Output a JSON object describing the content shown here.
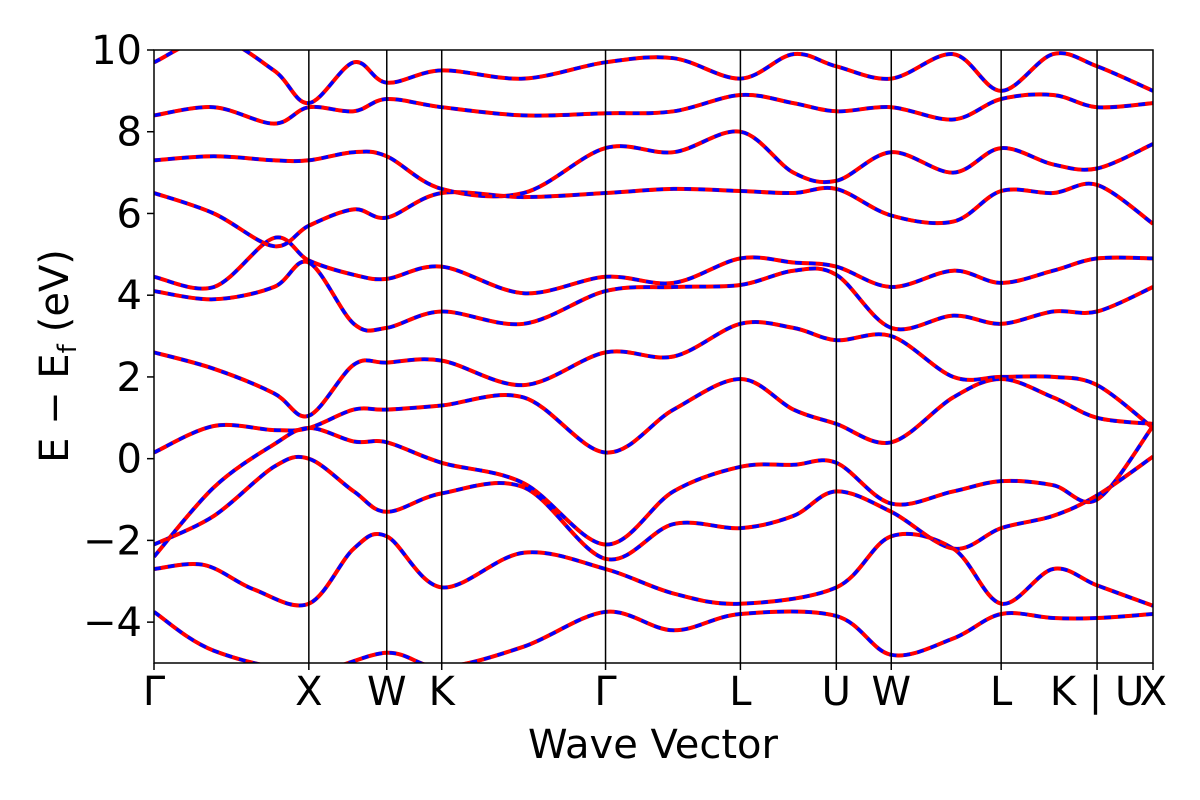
{
  "chart_data": {
    "type": "line",
    "title": "",
    "xlabel": "Wave Vector",
    "ylabel_main": "E − E",
    "ylabel_sub": "f",
    "ylabel_unit": "(eV)",
    "ylim": [
      -5,
      10
    ],
    "yticks": [
      -4,
      -2,
      0,
      2,
      4,
      6,
      8,
      10
    ],
    "ytick_labels": [
      "−4",
      "−2",
      "0",
      "2",
      "4",
      "6",
      "8",
      "10"
    ],
    "xlim": [
      0,
      1
    ],
    "kpoints": [
      {
        "label": "Γ",
        "pos": 0.0
      },
      {
        "label": "X",
        "pos": 0.155
      },
      {
        "label": "W",
        "pos": 0.233
      },
      {
        "label": "K",
        "pos": 0.288
      },
      {
        "label": "Γ",
        "pos": 0.452
      },
      {
        "label": "L",
        "pos": 0.587
      },
      {
        "label": "U",
        "pos": 0.683
      },
      {
        "label": "W",
        "pos": 0.738
      },
      {
        "label": "L",
        "pos": 0.848
      },
      {
        "label": "K | U",
        "pos": 0.944
      },
      {
        "label": "X",
        "pos": 1.0
      }
    ],
    "colors": {
      "red": "#ff0000",
      "blue": "#0000ff"
    },
    "grid": false,
    "series": [
      {
        "style": "solid-red",
        "bands": [
          {
            "x": [
              0,
              0.06,
              0.155,
              0.233,
              0.288,
              0.37,
              0.452,
              0.52,
              0.587,
              0.683,
              0.738,
              0.8,
              0.848,
              0.9,
              0.944,
              1.0
            ],
            "y": [
              -3.75,
              -4.7,
              -5.2,
              -4.75,
              -5.1,
              -4.6,
              -3.75,
              -4.2,
              -3.8,
              -3.85,
              -4.8,
              -4.4,
              -3.8,
              -3.9,
              -3.9,
              -3.8
            ]
          },
          {
            "x": [
              0,
              0.05,
              0.1,
              0.155,
              0.2,
              0.233,
              0.288,
              0.37,
              0.452,
              0.52,
              0.587,
              0.683,
              0.738,
              0.8,
              0.848,
              0.9,
              0.944,
              1.0
            ],
            "y": [
              -2.7,
              -2.6,
              -3.2,
              -3.55,
              -2.2,
              -1.9,
              -3.15,
              -2.3,
              -2.7,
              -3.3,
              -3.55,
              -3.15,
              -1.9,
              -2.2,
              -3.55,
              -2.7,
              -3.1,
              -3.6
            ]
          },
          {
            "x": [
              0,
              0.06,
              0.12,
              0.155,
              0.2,
              0.233,
              0.288,
              0.37,
              0.452,
              0.52,
              0.587,
              0.64,
              0.683,
              0.738,
              0.8,
              0.848,
              0.9,
              0.944,
              1.0
            ],
            "y": [
              -2.1,
              -1.4,
              -0.2,
              0.0,
              -0.8,
              -1.3,
              -0.85,
              -0.7,
              -2.45,
              -1.6,
              -1.7,
              -1.4,
              -0.8,
              -1.3,
              -2.2,
              -1.7,
              -1.4,
              -0.9,
              0.05
            ]
          },
          {
            "x": [
              0,
              0.06,
              0.12,
              0.155,
              0.2,
              0.233,
              0.288,
              0.37,
              0.452,
              0.52,
              0.587,
              0.64,
              0.683,
              0.738,
              0.8,
              0.848,
              0.9,
              0.944,
              1.0
            ],
            "y": [
              -2.4,
              -0.7,
              0.35,
              0.75,
              0.42,
              0.4,
              -0.1,
              -0.6,
              -2.1,
              -0.8,
              -0.2,
              -0.15,
              -0.1,
              -1.1,
              -0.8,
              -0.55,
              -0.65,
              -1.0,
              0.8
            ]
          },
          {
            "x": [
              0,
              0.06,
              0.12,
              0.155,
              0.2,
              0.233,
              0.288,
              0.37,
              0.452,
              0.52,
              0.587,
              0.64,
              0.683,
              0.738,
              0.8,
              0.848,
              0.9,
              0.944,
              1.0
            ],
            "y": [
              0.15,
              0.8,
              0.7,
              0.75,
              1.2,
              1.2,
              1.3,
              1.5,
              0.15,
              1.2,
              1.95,
              1.2,
              0.85,
              0.4,
              1.5,
              1.95,
              1.5,
              1.0,
              0.85
            ]
          },
          {
            "x": [
              0,
              0.06,
              0.12,
              0.155,
              0.2,
              0.233,
              0.288,
              0.37,
              0.452,
              0.52,
              0.587,
              0.64,
              0.683,
              0.738,
              0.8,
              0.848,
              0.9,
              0.944,
              1.0
            ],
            "y": [
              2.6,
              2.2,
              1.6,
              1.05,
              2.3,
              2.35,
              2.4,
              1.8,
              2.6,
              2.5,
              3.3,
              3.2,
              2.9,
              3.0,
              2.0,
              2.0,
              2.0,
              1.8,
              0.75
            ]
          },
          {
            "x": [
              0,
              0.06,
              0.12,
              0.155,
              0.2,
              0.233,
              0.288,
              0.37,
              0.452,
              0.52,
              0.587,
              0.64,
              0.683,
              0.738,
              0.8,
              0.848,
              0.9,
              0.944,
              1.0
            ],
            "y": [
              4.1,
              3.9,
              4.2,
              4.8,
              3.3,
              3.2,
              3.6,
              3.3,
              4.1,
              4.2,
              4.25,
              4.6,
              4.5,
              3.2,
              3.5,
              3.3,
              3.6,
              3.6,
              4.2
            ]
          },
          {
            "x": [
              0,
              0.06,
              0.12,
              0.155,
              0.2,
              0.233,
              0.288,
              0.37,
              0.452,
              0.52,
              0.587,
              0.64,
              0.683,
              0.738,
              0.8,
              0.848,
              0.9,
              0.944,
              1.0
            ],
            "y": [
              4.45,
              4.2,
              5.4,
              4.85,
              4.5,
              4.4,
              4.7,
              4.05,
              4.45,
              4.3,
              4.9,
              4.8,
              4.7,
              4.2,
              4.6,
              4.3,
              4.6,
              4.9,
              4.9
            ]
          },
          {
            "x": [
              0,
              0.06,
              0.12,
              0.155,
              0.2,
              0.233,
              0.288,
              0.37,
              0.452,
              0.52,
              0.587,
              0.64,
              0.683,
              0.738,
              0.8,
              0.848,
              0.9,
              0.944,
              1.0
            ],
            "y": [
              6.5,
              6.0,
              5.2,
              5.7,
              6.1,
              5.9,
              6.5,
              6.4,
              6.5,
              6.6,
              6.55,
              6.5,
              6.6,
              5.95,
              5.8,
              6.55,
              6.5,
              6.7,
              5.75
            ]
          },
          {
            "x": [
              0,
              0.06,
              0.12,
              0.155,
              0.2,
              0.233,
              0.288,
              0.37,
              0.452,
              0.52,
              0.587,
              0.64,
              0.683,
              0.738,
              0.8,
              0.848,
              0.9,
              0.944,
              1.0
            ],
            "y": [
              7.3,
              7.4,
              7.3,
              7.3,
              7.5,
              7.4,
              6.6,
              6.5,
              7.6,
              7.5,
              8.0,
              7.0,
              6.8,
              7.5,
              7.0,
              7.6,
              7.2,
              7.1,
              7.7
            ]
          },
          {
            "x": [
              0,
              0.06,
              0.12,
              0.155,
              0.2,
              0.233,
              0.288,
              0.37,
              0.452,
              0.52,
              0.587,
              0.64,
              0.683,
              0.738,
              0.8,
              0.848,
              0.9,
              0.944,
              1.0
            ],
            "y": [
              8.4,
              8.6,
              8.2,
              8.6,
              8.5,
              8.8,
              8.6,
              8.4,
              8.45,
              8.5,
              8.9,
              8.7,
              8.5,
              8.6,
              8.3,
              8.8,
              8.9,
              8.6,
              8.7
            ]
          },
          {
            "x": [
              0,
              0.06,
              0.12,
              0.155,
              0.2,
              0.233,
              0.288,
              0.37,
              0.452,
              0.52,
              0.587,
              0.64,
              0.683,
              0.738,
              0.8,
              0.848,
              0.9,
              0.944,
              1.0
            ],
            "y": [
              9.7,
              10.3,
              9.5,
              8.7,
              9.7,
              9.2,
              9.5,
              9.3,
              9.7,
              9.8,
              9.3,
              9.9,
              9.6,
              9.3,
              9.9,
              9.0,
              9.9,
              9.6,
              9.0
            ]
          }
        ]
      },
      {
        "style": "dashed-blue",
        "bands": "same as solid-red"
      }
    ]
  }
}
